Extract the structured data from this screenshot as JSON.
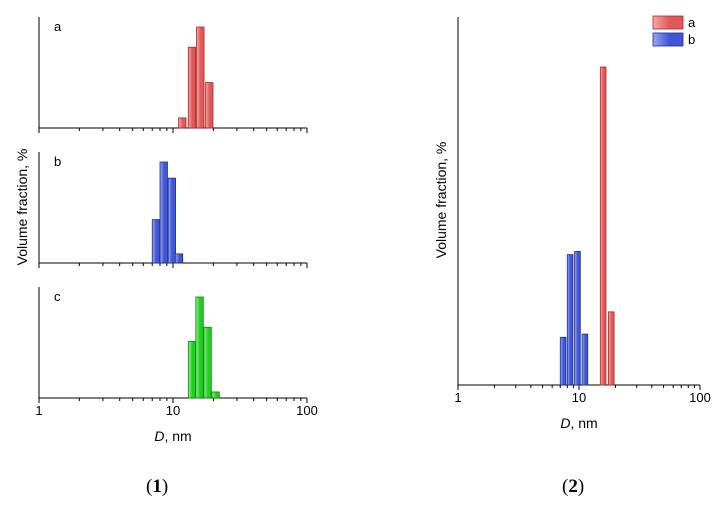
{
  "figure": {
    "captions": {
      "left": [
        "(",
        "1",
        ")"
      ],
      "right": [
        "(",
        "2",
        ")"
      ]
    }
  },
  "colors": {
    "a": {
      "fill": "#e05858",
      "light": "#f4a7a7",
      "stroke": "#a82828"
    },
    "b": {
      "fill": "#3f56d6",
      "light": "#98a6f0",
      "stroke": "#1e2c90"
    },
    "c": {
      "fill": "#1fcf1f",
      "light": "#95f095",
      "stroke": "#128012"
    }
  },
  "chart_data": [
    {
      "id": "1",
      "type": "bar",
      "x_scale": "log",
      "xlim": [
        1,
        100
      ],
      "x_ticks": [
        "1",
        "10",
        "100"
      ],
      "xlabel": {
        "var": "D",
        "unit": ", nm"
      },
      "ylabel": "Volume fraction, %",
      "panels": [
        {
          "label": "a",
          "color": "a",
          "ymax": 100,
          "bars": [
            {
              "x": 11.0,
              "y": 10
            },
            {
              "x": 13.0,
              "y": 80
            },
            {
              "x": 15.0,
              "y": 100
            },
            {
              "x": 17.5,
              "y": 45
            }
          ]
        },
        {
          "label": "b",
          "color": "b",
          "ymax": 100,
          "bars": [
            {
              "x": 7.0,
              "y": 43
            },
            {
              "x": 8.0,
              "y": 100
            },
            {
              "x": 9.2,
              "y": 84
            },
            {
              "x": 10.4,
              "y": 9
            }
          ]
        },
        {
          "label": "c",
          "color": "c",
          "ymax": 100,
          "bars": [
            {
              "x": 13.0,
              "y": 56
            },
            {
              "x": 14.8,
              "y": 100
            },
            {
              "x": 17.0,
              "y": 70
            },
            {
              "x": 19.5,
              "y": 6
            }
          ]
        }
      ]
    },
    {
      "id": "2",
      "type": "bar",
      "x_scale": "log",
      "xlim": [
        1,
        100
      ],
      "x_ticks": [
        "1",
        "10",
        "100"
      ],
      "xlabel": {
        "var": "D",
        "unit": ", nm"
      },
      "ylabel": "Volume fraction, %",
      "ymax": 100,
      "legend": {
        "position": "top-right",
        "entries": [
          "a",
          "b"
        ]
      },
      "series": [
        {
          "name": "a",
          "color": "a",
          "bars": [
            {
              "x": 15.0,
              "y": 100
            },
            {
              "x": 17.5,
              "y": 23
            }
          ]
        },
        {
          "name": "b",
          "color": "b",
          "bars": [
            {
              "x": 7.0,
              "y": 15
            },
            {
              "x": 8.0,
              "y": 41
            },
            {
              "x": 9.2,
              "y": 42
            },
            {
              "x": 10.6,
              "y": 16
            }
          ]
        }
      ]
    }
  ]
}
